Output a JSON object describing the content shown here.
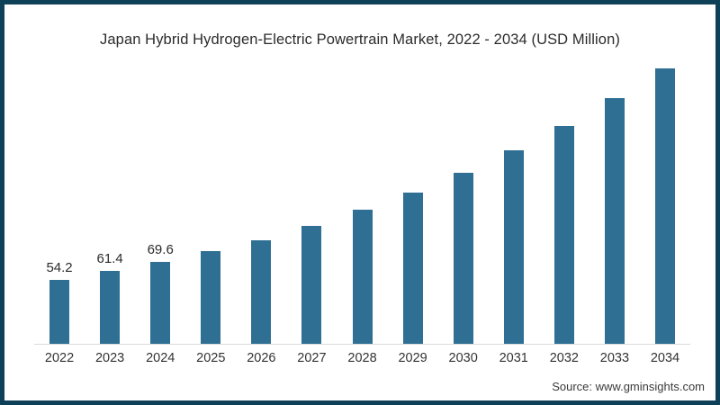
{
  "frame": {
    "border_color": "#0e4057",
    "background_color": "#ffffff"
  },
  "source_note": "Source: www.gminsights.com",
  "chart_data": {
    "type": "bar",
    "title": "Japan Hybrid Hydrogen-Electric Powertrain Market, 2022 - 2034 (USD Million)",
    "categories": [
      "2022",
      "2023",
      "2024",
      "2025",
      "2026",
      "2027",
      "2028",
      "2029",
      "2030",
      "2031",
      "2032",
      "2033",
      "2034"
    ],
    "values": [
      54.2,
      61.4,
      69.6,
      78.5,
      87.8,
      99.8,
      113.6,
      128.1,
      144.9,
      163.9,
      184.5,
      208.1,
      233.2
    ],
    "data_labels": [
      "54.2",
      "61.4",
      "69.6",
      null,
      null,
      null,
      null,
      null,
      null,
      null,
      null,
      null,
      null
    ],
    "bar_color": "#2e6f93",
    "xlabel": "",
    "ylabel": "",
    "ylim": [
      0,
      250
    ],
    "grid": false,
    "legend": "none",
    "axis_line_color": "#d9d9d9"
  }
}
